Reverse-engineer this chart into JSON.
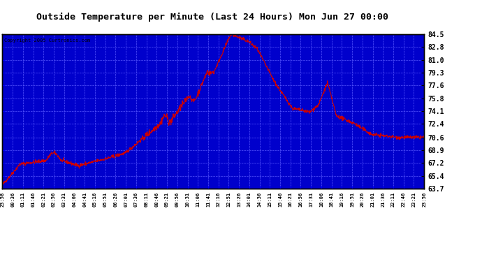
{
  "title": "Outside Temperature per Minute (Last 24 Hours) Mon Jun 27 00:00",
  "copyright": "Copyright 2005 Curtronics.com",
  "plot_bg_color": "#0000cc",
  "line_color": "#cc0000",
  "grid_color": "#3333ff",
  "outer_bg": "#ffffff",
  "yticks": [
    63.7,
    65.4,
    67.2,
    68.9,
    70.6,
    72.4,
    74.1,
    75.8,
    77.6,
    79.3,
    81.0,
    82.8,
    84.5
  ],
  "ymin": 63.7,
  "ymax": 84.5,
  "x_labels": [
    "23:58",
    "00:36",
    "01:11",
    "01:46",
    "02:21",
    "02:56",
    "03:31",
    "04:06",
    "04:41",
    "05:16",
    "05:51",
    "06:26",
    "07:01",
    "07:36",
    "08:11",
    "08:46",
    "09:21",
    "09:56",
    "10:31",
    "11:06",
    "11:41",
    "12:16",
    "12:51",
    "13:26",
    "14:01",
    "14:36",
    "15:11",
    "15:46",
    "16:21",
    "16:56",
    "17:31",
    "18:06",
    "18:41",
    "19:16",
    "19:51",
    "20:26",
    "21:01",
    "21:36",
    "22:11",
    "22:46",
    "23:21",
    "23:56"
  ]
}
